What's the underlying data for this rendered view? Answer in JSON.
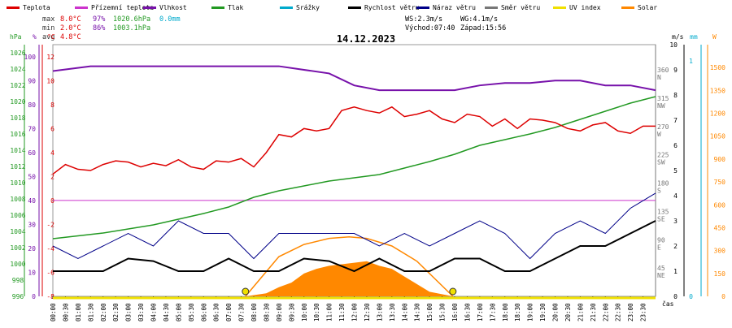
{
  "legend": [
    {
      "label": "Teplota",
      "color": "#dd0000"
    },
    {
      "label": "Přízemní teplota",
      "color": "#cc33cc"
    },
    {
      "label": "Vlhkost",
      "color": "#7711aa"
    },
    {
      "label": "Tlak",
      "color": "#229922"
    },
    {
      "label": "Srážky",
      "color": "#00aacc"
    },
    {
      "label": "Rychlost větru",
      "color": "#000000"
    },
    {
      "label": "Náraz větru",
      "color": "#000088"
    },
    {
      "label": "Směr větru",
      "color": "#777777"
    },
    {
      "label": "UV index",
      "color": "#f0e000"
    },
    {
      "label": "Solar",
      "color": "#ff8800"
    }
  ],
  "stats": {
    "max_label": "max",
    "max_temp": "8.0°C",
    "max_hum": "97%",
    "max_press": "1020.6hPa",
    "precip": "0.0mm",
    "min_label": "min",
    "min_temp": "2.0°C",
    "min_hum": "86%",
    "min_press": "1003.1hPa",
    "avg_label": "avg",
    "avg_temp": "4.8°C",
    "ws": "WS:2.3m/s",
    "wg": "WG:4.1m/s",
    "sunrise": "Východ:07:40",
    "sunset": "Západ:15:56"
  },
  "title": "14.12.2023",
  "axis_units": {
    "press": "hPa",
    "hum": "%",
    "temp": "°C",
    "wind": "m/s",
    "rain": "mm",
    "solar": "W",
    "time": "čas"
  },
  "axes": {
    "pressure": [
      "1026",
      "1024",
      "1022",
      "1020",
      "1018",
      "1016",
      "1014",
      "1012",
      "1010",
      "1008",
      "1006",
      "1004",
      "1002",
      "1000",
      "998",
      "996"
    ],
    "humidity": [
      "100",
      "90",
      "80",
      "70",
      "60",
      "50",
      "40",
      "30",
      "20",
      "10",
      "0"
    ],
    "temperature": [
      "12",
      "10",
      "8",
      "6",
      "4",
      "2",
      "0",
      "-2",
      "-4",
      "-6",
      "-8"
    ],
    "direction": [
      "360\nN",
      "315\nNW",
      "270\nW",
      "225\nSW",
      "180\nS",
      "135\nSE",
      "90\nE",
      "45\nNE"
    ],
    "wind": [
      "10",
      "9",
      "8",
      "7",
      "6",
      "5",
      "4",
      "3",
      "2",
      "1",
      "0"
    ],
    "rain": [
      "1",
      "0"
    ],
    "solar": [
      "1500",
      "1350",
      "1200",
      "1050",
      "900",
      "750",
      "600",
      "450",
      "300",
      "150",
      "0"
    ],
    "time": [
      "00:00",
      "00:30",
      "01:00",
      "01:30",
      "02:00",
      "02:30",
      "03:00",
      "03:30",
      "04:00",
      "04:30",
      "05:00",
      "05:30",
      "06:00",
      "06:30",
      "07:00",
      "07:30",
      "08:00",
      "08:30",
      "09:00",
      "09:30",
      "10:00",
      "10:30",
      "11:00",
      "11:30",
      "12:00",
      "12:30",
      "13:00",
      "13:30",
      "14:00",
      "14:30",
      "15:00",
      "15:30",
      "16:00",
      "16:30",
      "17:00",
      "17:30",
      "18:00",
      "18:30",
      "19:00",
      "19:30",
      "20:00",
      "20:30",
      "21:00",
      "21:30",
      "22:00",
      "22:30",
      "23:00",
      "23:30"
    ]
  },
  "chart_data": {
    "type": "line",
    "title": "14.12.2023",
    "x_unit": "hours",
    "xlim": [
      0,
      24
    ],
    "ylim_temperature": [
      -8,
      13
    ],
    "ylim_pressure": [
      996,
      1027
    ],
    "ylim_humidity": [
      0,
      105
    ],
    "ylim_wind": [
      0,
      10
    ],
    "ylim_direction": [
      0,
      400
    ],
    "ylim_solar": [
      0,
      1650
    ],
    "temperature": {
      "name": "Teplota",
      "x": [
        0,
        0.5,
        1,
        1.5,
        2,
        2.5,
        3,
        3.5,
        4,
        4.5,
        5,
        5.5,
        6,
        6.5,
        7,
        7.5,
        8,
        8.5,
        9,
        9.5,
        10,
        10.5,
        11,
        11.5,
        12,
        12.5,
        13,
        13.5,
        14,
        14.5,
        15,
        15.5,
        16,
        16.5,
        17,
        17.5,
        18,
        18.5,
        19,
        19.5,
        20,
        20.5,
        21,
        21.5,
        22,
        22.5,
        23,
        23.5,
        24
      ],
      "y": [
        2.2,
        3.0,
        2.6,
        2.5,
        3.0,
        3.3,
        3.2,
        2.8,
        3.1,
        2.9,
        3.4,
        2.8,
        2.6,
        3.3,
        3.2,
        3.5,
        2.8,
        4.0,
        5.5,
        5.3,
        6.0,
        5.8,
        6.0,
        7.5,
        7.8,
        7.5,
        7.3,
        7.8,
        7.0,
        7.2,
        7.5,
        6.8,
        6.5,
        7.2,
        7.0,
        6.2,
        6.8,
        6.0,
        6.8,
        6.7,
        6.5,
        6.0,
        5.8,
        6.3,
        6.5,
        5.8,
        5.6,
        6.2,
        6.2
      ]
    },
    "humidity": {
      "name": "Vlhkost",
      "x": [
        0,
        1.5,
        5,
        9,
        11,
        12,
        13,
        14,
        15,
        16,
        17,
        18,
        19,
        20,
        21,
        22,
        23,
        24
      ],
      "y": [
        94,
        96,
        96,
        96,
        93,
        88,
        86,
        86,
        86,
        86,
        88,
        89,
        89,
        90,
        90,
        88,
        88,
        86
      ]
    },
    "pressure": {
      "name": "Tlak",
      "x": [
        0,
        2,
        4,
        6,
        7,
        8,
        9,
        10,
        11,
        12,
        13,
        14,
        15,
        16,
        17,
        18,
        19,
        20,
        21,
        22,
        23,
        24
      ],
      "y": [
        1003.1,
        1003.8,
        1004.8,
        1006.2,
        1007.0,
        1008.2,
        1009.0,
        1009.6,
        1010.2,
        1010.6,
        1011.0,
        1011.8,
        1012.6,
        1013.5,
        1014.6,
        1015.3,
        1016.0,
        1016.8,
        1017.8,
        1018.8,
        1019.8,
        1020.6
      ]
    },
    "wind_speed": {
      "name": "Rychlost větru",
      "x": [
        0,
        1,
        2,
        3,
        4,
        5,
        6,
        7,
        8,
        9,
        10,
        11,
        12,
        13,
        14,
        15,
        16,
        17,
        18,
        19,
        20,
        21,
        22,
        23,
        24
      ],
      "y": [
        1.0,
        1.0,
        1.0,
        1.5,
        1.4,
        1.0,
        1.0,
        1.5,
        1.0,
        1.0,
        1.5,
        1.4,
        1.0,
        1.5,
        1.0,
        1.0,
        1.5,
        1.5,
        1.0,
        1.0,
        1.5,
        2.0,
        2.0,
        2.5,
        3.0
      ]
    },
    "wind_gust": {
      "name": "Náraz větru",
      "x": [
        0,
        1,
        2,
        3,
        4,
        5,
        6,
        7,
        8,
        9,
        10,
        11,
        12,
        13,
        14,
        15,
        16,
        17,
        18,
        19,
        20,
        21,
        22,
        23,
        24
      ],
      "y": [
        2.0,
        1.5,
        2.0,
        2.5,
        2.0,
        3.0,
        2.5,
        2.5,
        1.5,
        2.5,
        2.5,
        2.5,
        2.5,
        2.0,
        2.5,
        2.0,
        2.5,
        3.0,
        2.5,
        1.5,
        2.5,
        3.0,
        2.5,
        3.5,
        4.1
      ]
    },
    "solar": {
      "name": "Solar",
      "x": [
        7.67,
        8.5,
        9,
        9.5,
        10,
        10.5,
        11,
        11.5,
        12,
        12.5,
        13,
        13.5,
        14,
        14.5,
        15,
        15.93
      ],
      "y": [
        0,
        20,
        60,
        90,
        150,
        180,
        200,
        210,
        220,
        230,
        200,
        180,
        130,
        80,
        30,
        0
      ]
    },
    "solar_clear_sky": {
      "x": [
        7.67,
        9,
        10,
        11,
        11.8,
        12.5,
        13.5,
        14.5,
        15.93
      ],
      "y": [
        0,
        260,
        340,
        380,
        390,
        380,
        330,
        230,
        0
      ]
    },
    "sunrise": 7.67,
    "sunset": 15.93
  }
}
